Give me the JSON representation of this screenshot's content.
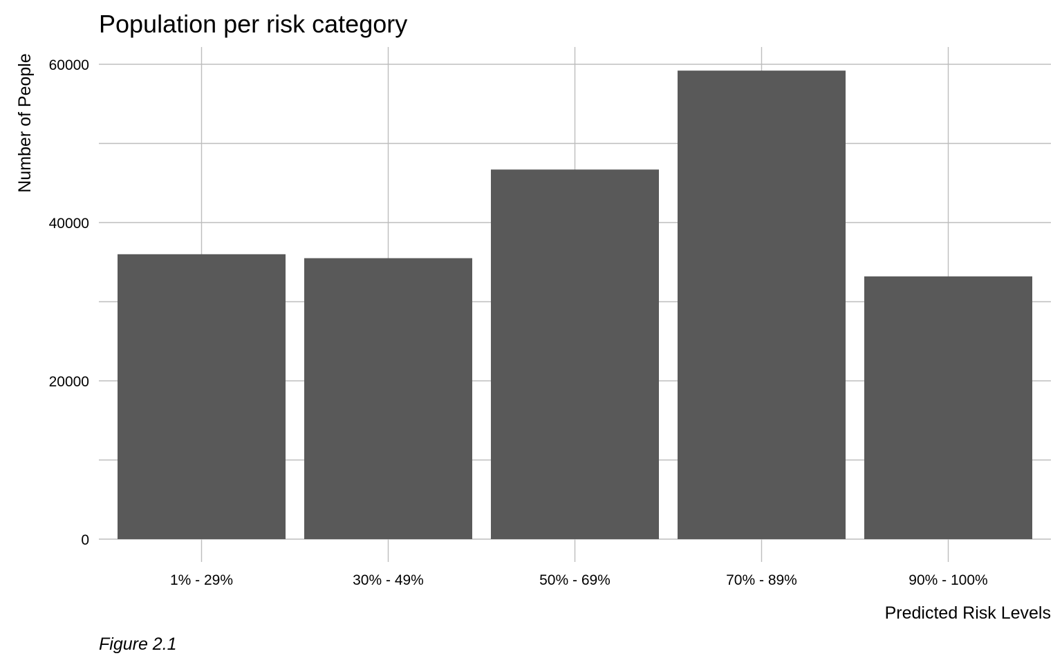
{
  "chart_data": {
    "type": "bar",
    "title": "Population per risk category",
    "xlabel": "Predicted Risk Levels",
    "ylabel": "Number of People",
    "caption": "Figure 2.1",
    "categories": [
      "1% - 29%",
      "30% - 49%",
      "50% - 69%",
      "70% - 89%",
      "90% - 100%"
    ],
    "values": [
      36000,
      35500,
      46700,
      59200,
      33200
    ],
    "ylim": [
      0,
      60000
    ],
    "yticks": [
      0,
      20000,
      40000,
      60000
    ],
    "ytick_labels": [
      "0",
      "20000",
      "40000",
      "60000"
    ],
    "grid": true,
    "legend": "none",
    "colors": {
      "bar": "#595959",
      "grid": "#bdbdbd",
      "background": "#ffffff"
    }
  }
}
